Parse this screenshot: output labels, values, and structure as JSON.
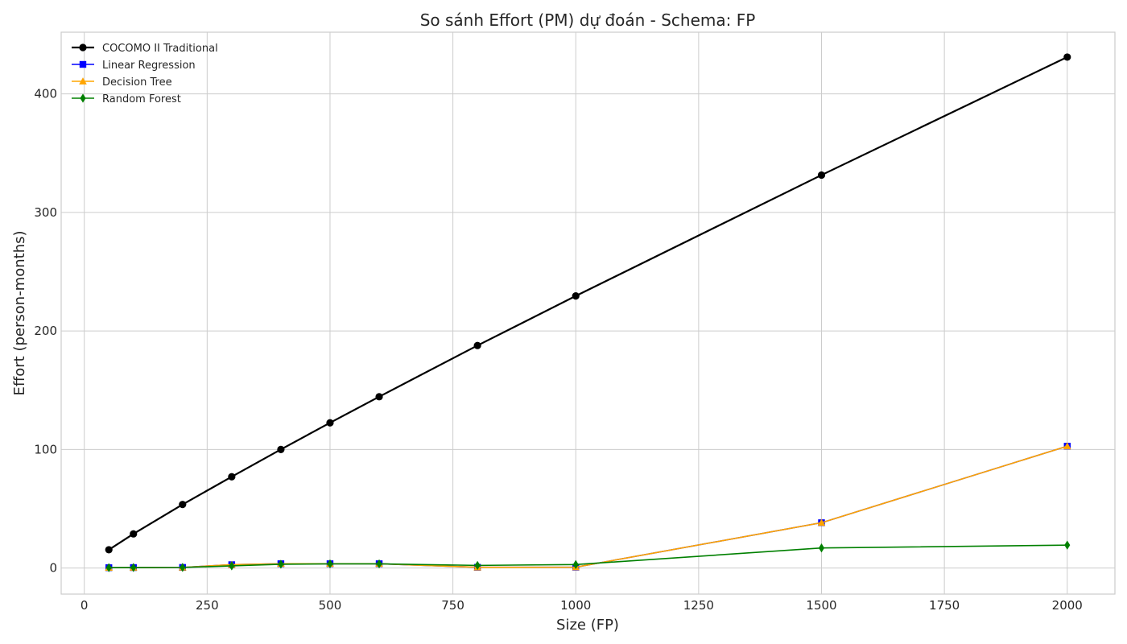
{
  "chart_data": {
    "type": "line",
    "title": "So sánh Effort (PM) dự đoán - Schema: FP",
    "xlabel": "Size (FP)",
    "ylabel": "Effort (person-months)",
    "xlim": [
      -47,
      2097
    ],
    "ylim": [
      -22,
      452
    ],
    "xticks": [
      0,
      250,
      500,
      750,
      1000,
      1250,
      1500,
      1750,
      2000
    ],
    "yticks": [
      0,
      100,
      200,
      300,
      400
    ],
    "grid": true,
    "legend_position": "top-left",
    "x": [
      50,
      100,
      200,
      300,
      400,
      500,
      600,
      800,
      1000,
      1500,
      2000
    ],
    "series": [
      {
        "name": "COCOMO II Traditional",
        "color": "#000000",
        "marker": "circle",
        "line_width": 2.2,
        "values": [
          15.4,
          28.8,
          53.6,
          77.0,
          100.0,
          122.5,
          144.5,
          187.7,
          229.5,
          331.5,
          431.0
        ]
      },
      {
        "name": "Linear Regression",
        "color": "#0000ff",
        "marker": "square",
        "line_width": 1.6,
        "values": [
          0.3,
          0.4,
          0.5,
          2.8,
          3.6,
          3.6,
          3.6,
          0.6,
          0.7,
          38.2,
          102.8
        ]
      },
      {
        "name": "Decision Tree",
        "color": "#ffa500",
        "marker": "triangle",
        "line_width": 1.6,
        "values": [
          0.3,
          0.4,
          0.5,
          2.8,
          3.6,
          3.6,
          3.6,
          0.6,
          0.7,
          38.2,
          102.8
        ]
      },
      {
        "name": "Random Forest",
        "color": "#008000",
        "marker": "diamond",
        "line_width": 1.6,
        "values": [
          0.3,
          0.4,
          0.5,
          1.8,
          3.2,
          3.5,
          3.5,
          2.2,
          2.9,
          16.9,
          19.3
        ]
      }
    ]
  }
}
